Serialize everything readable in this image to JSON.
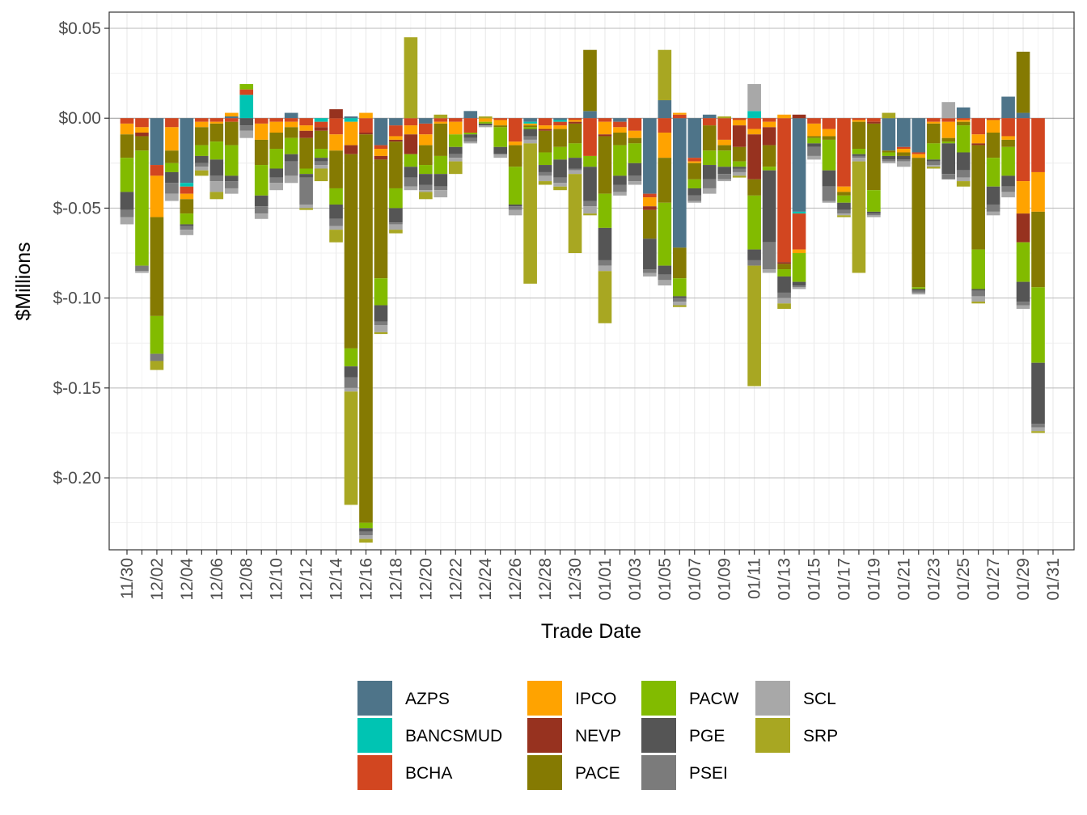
{
  "chart_data": {
    "type": "bar",
    "stacked": true,
    "title": "",
    "xlabel": "Trade Date",
    "ylabel": "$Millions",
    "ylim": [
      -0.24,
      0.059
    ],
    "yticks": [
      0.05,
      0.0,
      -0.05,
      -0.1,
      -0.15,
      -0.2
    ],
    "ytick_labels": [
      "$0.05",
      "$0.00",
      "$-0.05",
      "$-0.10",
      "$-0.15",
      "$-0.20"
    ],
    "xtick_labels": [
      "11/30",
      "12/02",
      "12/04",
      "12/06",
      "12/08",
      "12/10",
      "12/12",
      "12/14",
      "12/16",
      "12/18",
      "12/20",
      "12/22",
      "12/24",
      "12/26",
      "12/28",
      "12/30",
      "01/01",
      "01/03",
      "01/05",
      "01/07",
      "01/09",
      "01/11",
      "01/13",
      "01/15",
      "01/17",
      "01/19",
      "01/21",
      "01/23",
      "01/25",
      "01/27",
      "01/29",
      "01/31"
    ],
    "categories": [
      "11/30",
      "12/01",
      "12/02",
      "12/03",
      "12/04",
      "12/05",
      "12/06",
      "12/07",
      "12/08",
      "12/09",
      "12/10",
      "12/11",
      "12/12",
      "12/13",
      "12/14",
      "12/15",
      "12/16",
      "12/17",
      "12/18",
      "12/19",
      "12/20",
      "12/21",
      "12/22",
      "12/23",
      "12/24",
      "12/25",
      "12/26",
      "12/27",
      "12/28",
      "12/29",
      "12/30",
      "12/31",
      "01/01",
      "01/02",
      "01/03",
      "01/04",
      "01/05",
      "01/06",
      "01/07",
      "01/08",
      "01/09",
      "01/10",
      "01/11",
      "01/12",
      "01/13",
      "01/14",
      "01/15",
      "01/16",
      "01/17",
      "01/18",
      "01/19",
      "01/20",
      "01/21",
      "01/22",
      "01/23",
      "01/24",
      "01/25",
      "01/26",
      "01/27",
      "01/28",
      "01/29",
      "01/30",
      "01/31"
    ],
    "legend": {
      "placement": "bottom",
      "entries": [
        "AZPS",
        "BANCSMUD",
        "BCHA",
        "IPCO",
        "NEVP",
        "PACE",
        "PACW",
        "PGE",
        "PSEI",
        "SCL",
        "SRP"
      ],
      "colors": [
        "#4e7489",
        "#00c4b3",
        "#d24620",
        "#ffa300",
        "#97321f",
        "#857a02",
        "#82bb00",
        "#555555",
        "#7b7b7b",
        "#a8a8a8",
        "#a8a722"
      ]
    },
    "series": [
      {
        "name": "AZPS",
        "color": "#4e7489",
        "values": [
          0,
          0,
          -0.026,
          0,
          -0.036,
          0,
          0,
          0.001,
          0,
          0,
          0,
          0.003,
          0,
          0,
          0,
          0.001,
          0,
          -0.015,
          -0.004,
          0,
          -0.003,
          0,
          0,
          0.004,
          0,
          0,
          0,
          -0.002,
          0,
          -0.001,
          0,
          0.004,
          0,
          -0.002,
          0,
          -0.042,
          0.01,
          -0.072,
          -0.022,
          0.002,
          0,
          0,
          0,
          0,
          0,
          -0.052,
          0,
          0,
          0,
          0,
          0,
          -0.018,
          -0.016,
          -0.019,
          0,
          0,
          0.006,
          0,
          0,
          0.012,
          0.003,
          0,
          0
        ]
      },
      {
        "name": "BANCSMUD",
        "color": "#00c4b3",
        "values": [
          0,
          0,
          0,
          0,
          -0.002,
          0,
          0,
          0,
          0.013,
          0,
          0,
          0,
          0,
          -0.002,
          0,
          -0.002,
          0,
          0,
          0,
          0,
          0,
          0,
          0,
          0,
          0,
          0,
          0,
          -0.001,
          0,
          -0.001,
          0,
          0,
          0,
          0,
          0,
          0,
          0,
          0,
          0,
          0,
          0,
          0,
          0.004,
          0,
          0,
          -0.001,
          0,
          0,
          0,
          0,
          0,
          0,
          0,
          0,
          0,
          0,
          0,
          0,
          0,
          0,
          0,
          0,
          0
        ]
      },
      {
        "name": "BCHA",
        "color": "#d24620",
        "values": [
          -0.003,
          -0.005,
          -0.006,
          -0.005,
          -0.004,
          -0.002,
          -0.002,
          -0.002,
          0.003,
          -0.003,
          -0.002,
          -0.002,
          -0.004,
          -0.003,
          -0.009,
          0,
          -0.008,
          -0.002,
          -0.006,
          -0.004,
          -0.006,
          -0.002,
          -0.002,
          -0.008,
          0,
          -0.001,
          -0.013,
          0,
          -0.004,
          -0.002,
          -0.001,
          -0.021,
          -0.002,
          -0.003,
          -0.007,
          -0.002,
          -0.008,
          0.002,
          -0.002,
          -0.004,
          -0.012,
          -0.001,
          -0.006,
          -0.002,
          -0.08,
          -0.02,
          -0.003,
          -0.006,
          -0.038,
          -0.001,
          -0.002,
          0,
          -0.001,
          -0.001,
          -0.002,
          -0.002,
          -0.001,
          -0.009,
          -0.001,
          -0.01,
          -0.035,
          -0.03,
          0
        ]
      },
      {
        "name": "IPCO",
        "color": "#ffa300",
        "values": [
          -0.006,
          -0.003,
          -0.023,
          -0.013,
          -0.003,
          -0.003,
          -0.001,
          0.002,
          0,
          -0.009,
          -0.006,
          -0.003,
          -0.003,
          0,
          -0.009,
          -0.013,
          0.003,
          -0.004,
          -0.002,
          -0.005,
          -0.006,
          -0.001,
          -0.007,
          0,
          -0.002,
          -0.003,
          -0.002,
          -0.001,
          -0.002,
          -0.002,
          -0.001,
          0,
          -0.007,
          -0.003,
          -0.004,
          -0.005,
          -0.014,
          0.001,
          -0.001,
          0,
          -0.003,
          -0.003,
          -0.003,
          -0.003,
          0.002,
          -0.002,
          -0.007,
          -0.004,
          -0.003,
          -0.001,
          0,
          0,
          -0.002,
          -0.002,
          -0.001,
          -0.009,
          -0.001,
          -0.005,
          -0.007,
          -0.002,
          -0.018,
          -0.022,
          0
        ]
      },
      {
        "name": "NEVP",
        "color": "#97321f",
        "values": [
          0,
          -0.002,
          0,
          0,
          0,
          0,
          0,
          0,
          0,
          0,
          0,
          0,
          -0.004,
          -0.002,
          0.005,
          -0.005,
          -0.001,
          -0.002,
          -0.001,
          -0.011,
          0,
          0,
          0,
          0,
          0,
          0,
          0,
          0,
          -0.001,
          0,
          -0.001,
          0,
          -0.001,
          0,
          0,
          -0.002,
          0,
          0,
          0,
          0,
          0,
          -0.012,
          -0.025,
          -0.01,
          -0.001,
          0.002,
          0,
          0,
          0,
          0,
          -0.001,
          0,
          0,
          0,
          0,
          0,
          0,
          -0.001,
          0,
          0,
          -0.016,
          0,
          0
        ]
      },
      {
        "name": "PACE",
        "color": "#857a02",
        "values": [
          -0.013,
          -0.008,
          -0.055,
          -0.007,
          -0.008,
          -0.01,
          -0.01,
          -0.013,
          0,
          -0.014,
          -0.009,
          -0.006,
          -0.017,
          -0.01,
          -0.021,
          -0.108,
          -0.216,
          -0.066,
          -0.026,
          0,
          -0.011,
          -0.018,
          0,
          0,
          0,
          -0.001,
          -0.012,
          -0.001,
          -0.012,
          -0.01,
          -0.011,
          0.034,
          -0.032,
          -0.007,
          -0.003,
          -0.016,
          -0.025,
          -0.017,
          -0.009,
          -0.014,
          -0.003,
          -0.008,
          -0.009,
          -0.012,
          -0.003,
          0,
          -0.001,
          -0.002,
          -0.002,
          -0.015,
          -0.037,
          -0.001,
          -0.002,
          -0.072,
          -0.011,
          -0.002,
          -0.002,
          -0.058,
          -0.014,
          -0.004,
          0.034,
          -0.042,
          0
        ]
      },
      {
        "name": "PACW",
        "color": "#82bb00",
        "values": [
          -0.019,
          -0.064,
          -0.021,
          -0.005,
          -0.006,
          -0.006,
          -0.01,
          -0.017,
          0.003,
          -0.017,
          -0.011,
          -0.009,
          -0.003,
          -0.005,
          -0.009,
          -0.01,
          -0.003,
          -0.015,
          -0.011,
          -0.007,
          -0.005,
          -0.01,
          -0.007,
          -0.001,
          -0.001,
          -0.011,
          -0.021,
          -0.001,
          -0.007,
          -0.007,
          -0.008,
          -0.006,
          -0.019,
          -0.017,
          -0.011,
          0,
          -0.035,
          -0.01,
          -0.005,
          -0.008,
          -0.009,
          -0.003,
          -0.03,
          -0.002,
          -0.004,
          -0.016,
          -0.003,
          -0.017,
          -0.004,
          -0.003,
          -0.012,
          -0.002,
          0,
          -0.001,
          -0.009,
          -0.001,
          -0.015,
          -0.022,
          -0.016,
          -0.016,
          -0.022,
          -0.042,
          0
        ]
      },
      {
        "name": "PGE",
        "color": "#555555",
        "values": [
          -0.01,
          0,
          0,
          -0.006,
          -0.001,
          -0.004,
          -0.009,
          -0.003,
          -0.004,
          -0.006,
          -0.005,
          -0.004,
          -0.002,
          -0.002,
          -0.008,
          -0.006,
          -0.002,
          -0.009,
          -0.008,
          -0.006,
          -0.006,
          -0.007,
          -0.004,
          -0.002,
          -0.001,
          -0.004,
          -0.001,
          -0.004,
          -0.004,
          -0.01,
          -0.006,
          -0.019,
          -0.018,
          -0.005,
          -0.007,
          -0.017,
          -0.005,
          -0.001,
          -0.004,
          -0.008,
          -0.004,
          -0.001,
          -0.006,
          -0.04,
          -0.009,
          -0.002,
          -0.002,
          -0.009,
          -0.004,
          -0.001,
          -0.001,
          -0.002,
          -0.002,
          -0.001,
          -0.001,
          -0.017,
          -0.01,
          -0.001,
          -0.01,
          -0.006,
          -0.011,
          -0.034,
          0
        ]
      },
      {
        "name": "PSEI",
        "color": "#7b7b7b",
        "values": [
          -0.004,
          -0.003,
          -0.004,
          -0.006,
          -0.002,
          -0.002,
          -0.003,
          -0.004,
          -0.003,
          -0.004,
          -0.003,
          -0.008,
          -0.015,
          -0.002,
          -0.004,
          -0.006,
          -0.002,
          -0.002,
          -0.001,
          -0.005,
          -0.003,
          -0.002,
          -0.002,
          -0.002,
          0,
          0,
          -0.002,
          -0.002,
          -0.002,
          -0.003,
          -0.001,
          -0.003,
          -0.003,
          -0.004,
          -0.003,
          -0.002,
          -0.003,
          -0.002,
          -0.003,
          -0.005,
          -0.003,
          -0.002,
          -0.003,
          -0.015,
          -0.003,
          -0.001,
          -0.005,
          -0.008,
          -0.002,
          -0.001,
          -0.001,
          -0.001,
          -0.001,
          -0.001,
          -0.002,
          -0.003,
          -0.004,
          -0.003,
          -0.004,
          -0.003,
          -0.002,
          -0.002,
          0
        ]
      },
      {
        "name": "SCL",
        "color": "#a8a8a8",
        "values": [
          -0.004,
          -0.001,
          0,
          -0.004,
          -0.003,
          -0.002,
          -0.006,
          -0.003,
          -0.004,
          -0.003,
          -0.004,
          -0.004,
          -0.002,
          -0.002,
          -0.002,
          -0.002,
          -0.002,
          -0.004,
          -0.003,
          -0.002,
          -0.001,
          -0.004,
          -0.002,
          -0.001,
          -0.001,
          -0.002,
          -0.003,
          -0.002,
          -0.003,
          -0.002,
          -0.002,
          -0.004,
          -0.003,
          -0.002,
          -0.002,
          -0.002,
          -0.003,
          -0.002,
          -0.001,
          -0.003,
          -0.001,
          -0.002,
          0.015,
          -0.002,
          -0.003,
          -0.001,
          -0.002,
          -0.001,
          -0.001,
          -0.002,
          -0.001,
          -0.001,
          -0.003,
          -0.001,
          -0.001,
          0.009,
          -0.002,
          -0.003,
          -0.002,
          -0.003,
          -0.002,
          -0.002,
          0
        ]
      },
      {
        "name": "SRP",
        "color": "#a8a722",
        "values": [
          0,
          0,
          -0.005,
          0,
          0,
          -0.003,
          -0.004,
          0,
          0,
          0,
          0,
          0,
          -0.001,
          -0.007,
          -0.007,
          -0.063,
          -0.002,
          -0.001,
          -0.002,
          0.045,
          -0.004,
          0.002,
          -0.007,
          0,
          0.001,
          0,
          0,
          -0.078,
          -0.002,
          -0.002,
          -0.044,
          -0.001,
          -0.029,
          0,
          0,
          0,
          0.028,
          -0.001,
          0,
          0,
          0.001,
          -0.001,
          -0.067,
          0,
          -0.003,
          0,
          0,
          0,
          -0.001,
          -0.062,
          0,
          0.003,
          0,
          0,
          -0.001,
          0,
          -0.003,
          -0.001,
          0,
          0,
          0,
          -0.001,
          0
        ]
      }
    ]
  }
}
